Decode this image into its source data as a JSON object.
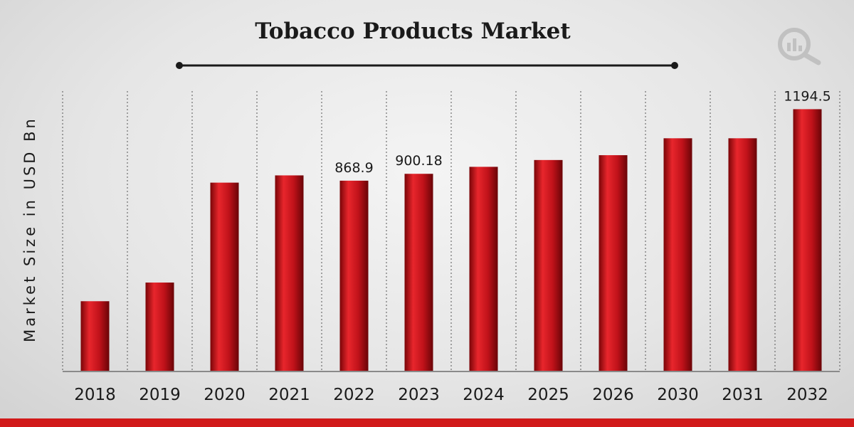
{
  "chart_data": {
    "type": "bar",
    "title": "Tobacco Products Market",
    "ylabel": "Market Size in USD Bn",
    "xlabel": "",
    "categories": [
      "2018",
      "2019",
      "2020",
      "2021",
      "2022",
      "2023",
      "2024",
      "2025",
      "2026",
      "2030",
      "2031",
      "2032"
    ],
    "values": [
      320,
      405,
      860,
      893,
      868.9,
      900.18,
      932,
      963,
      985,
      1062,
      1062,
      1194.5
    ],
    "data_labels": {
      "4": "868.9",
      "5": "900.18",
      "11": "1194.5"
    },
    "ylim": [
      0,
      1400
    ],
    "grid": "vertical dotted separators",
    "legend": "none",
    "colors": {
      "bar": "#c0121a",
      "bar_dark": "#7a0508",
      "bar_light": "#e8262c"
    }
  },
  "brand": {
    "logo_icon": "magnifier-chart-icon",
    "accent_color": "#d11a1a"
  }
}
